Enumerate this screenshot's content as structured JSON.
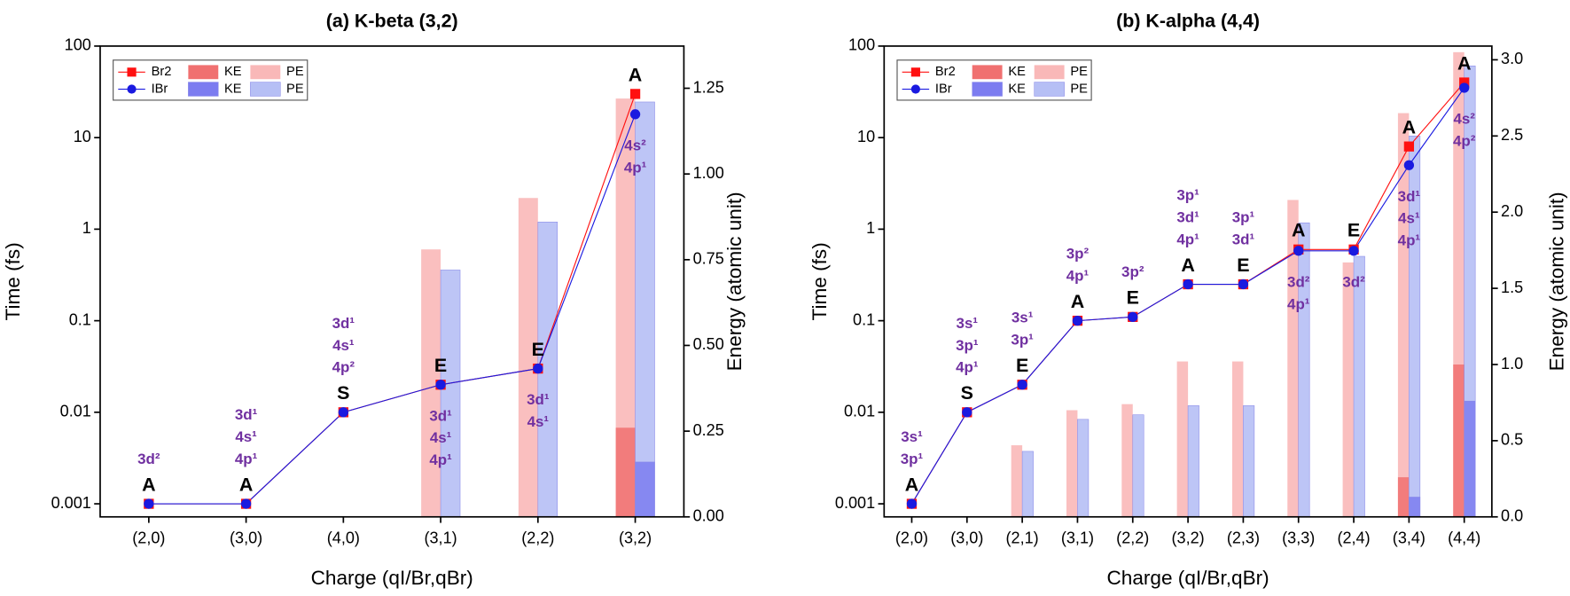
{
  "chart_data": [
    {
      "type": "bar_line",
      "title": "(a) K-beta (3,2)",
      "x_label": "Charge (qI/Br,qBr)",
      "y_label": "Time (fs)",
      "y2_label": "Energy (atomic unit)",
      "categories": [
        "(2,0)",
        "(3,0)",
        "(4,0)",
        "(3,1)",
        "(2,2)",
        "(3,2)"
      ],
      "series": [
        {
          "name": "Br2",
          "kind": "line",
          "marker": "square",
          "color": "#ff1010",
          "values": [
            0.001,
            0.001,
            0.01,
            0.02,
            0.03,
            30
          ]
        },
        {
          "name": "IBr",
          "kind": "line",
          "marker": "circle",
          "color": "#1a1ae0",
          "values": [
            0.001,
            0.001,
            0.01,
            0.02,
            0.03,
            18
          ]
        },
        {
          "name": "KE",
          "kind": "bar",
          "axis": "y2",
          "color": "#f07070",
          "values": [
            null,
            null,
            null,
            null,
            null,
            0.26
          ]
        },
        {
          "name": "PE",
          "kind": "bar",
          "axis": "y2",
          "color": "#f9b8b8",
          "values": [
            null,
            null,
            null,
            0.78,
            0.93,
            1.22
          ]
        },
        {
          "name": "KE",
          "kind": "bar",
          "axis": "y2",
          "color": "#7c7cf0",
          "values": [
            null,
            null,
            null,
            null,
            null,
            0.16
          ]
        },
        {
          "name": "PE",
          "kind": "bar",
          "axis": "y2",
          "color": "#b6bff5",
          "values": [
            null,
            null,
            null,
            0.72,
            0.86,
            1.21
          ]
        }
      ],
      "point_labels": [
        "A",
        "A",
        "S",
        "E",
        "E",
        "A"
      ],
      "config_labels": [
        [
          "3d²"
        ],
        [
          "3d¹",
          "4s¹",
          "4p¹"
        ],
        [
          "3d¹",
          "4s¹",
          "4p²"
        ],
        [
          "3d¹",
          "4s¹",
          "4p¹"
        ],
        [
          "3d¹",
          "4s¹"
        ],
        [
          "4s²",
          "4p¹"
        ]
      ],
      "ylog": true,
      "ylim": [
        0.00072,
        100
      ],
      "yticks": [
        0.001,
        0.01,
        0.1,
        1,
        10,
        100
      ],
      "y2lim": [
        0,
        1.373
      ],
      "y2ticks": [
        {
          "value": 0,
          "label": "0.00"
        },
        {
          "value": 0.25,
          "label": "0.25"
        },
        {
          "value": 0.5,
          "label": "0.50"
        },
        {
          "value": 0.75,
          "label": "0.75"
        },
        {
          "value": 1,
          "label": "1.00"
        },
        {
          "value": 1.25,
          "label": "1.25"
        }
      ],
      "legend": "upper left"
    },
    {
      "type": "bar_line",
      "title": "(b) K-alpha (4,4)",
      "x_label": "Charge (qI/Br,qBr)",
      "y_label": "Time (fs)",
      "y2_label": "Energy (atomic unit)",
      "categories": [
        "(2,0)",
        "(3,0)",
        "(2,1)",
        "(3,1)",
        "(2,2)",
        "(3,2)",
        "(2,3)",
        "(3,3)",
        "(2,4)",
        "(3,4)",
        "(4,4)"
      ],
      "series": [
        {
          "name": "Br2",
          "kind": "line",
          "marker": "square",
          "color": "#ff1010",
          "values": [
            0.001,
            0.01,
            0.02,
            0.1,
            0.11,
            0.25,
            0.25,
            0.6,
            0.6,
            8,
            40
          ]
        },
        {
          "name": "IBr",
          "kind": "line",
          "marker": "circle",
          "color": "#1a1ae0",
          "values": [
            0.001,
            0.01,
            0.02,
            0.1,
            0.11,
            0.25,
            0.25,
            0.58,
            0.58,
            5,
            35
          ]
        },
        {
          "name": "KE",
          "kind": "bar",
          "axis": "y2",
          "color": "#f07070",
          "values": [
            null,
            null,
            null,
            null,
            null,
            null,
            null,
            null,
            null,
            0.26,
            1.0
          ]
        },
        {
          "name": "PE",
          "kind": "bar",
          "axis": "y2",
          "color": "#f9b8b8",
          "values": [
            null,
            null,
            0.47,
            0.7,
            0.74,
            1.02,
            1.02,
            2.08,
            1.67,
            2.65,
            3.05
          ]
        },
        {
          "name": "KE",
          "kind": "bar",
          "axis": "y2",
          "color": "#7c7cf0",
          "values": [
            null,
            null,
            null,
            null,
            null,
            null,
            null,
            null,
            null,
            0.13,
            0.76
          ]
        },
        {
          "name": "PE",
          "kind": "bar",
          "axis": "y2",
          "color": "#b6bff5",
          "values": [
            null,
            null,
            0.43,
            0.64,
            0.67,
            0.73,
            0.73,
            1.93,
            1.71,
            2.5,
            2.96
          ]
        }
      ],
      "point_labels": [
        "A",
        "S",
        "E",
        "A",
        "E",
        "A",
        "E",
        "A",
        "E",
        "A",
        "A"
      ],
      "config_labels": [
        [
          "3s¹",
          "3p¹"
        ],
        [
          "3s¹",
          "3p¹",
          "4p¹"
        ],
        [
          "3s¹",
          "3p¹"
        ],
        [
          "3p²",
          "4p¹"
        ],
        [
          "3p²"
        ],
        [
          "3p¹",
          "3d¹",
          "4p¹"
        ],
        [
          "3p¹",
          "3d¹"
        ],
        [
          "3d²",
          "4p¹"
        ],
        [
          "3d²"
        ],
        [
          "3d¹",
          "4s¹",
          "4p¹"
        ],
        [
          "4s²",
          "4p²"
        ]
      ],
      "ylog": true,
      "ylim": [
        0.00072,
        100
      ],
      "yticks": [
        0.001,
        0.01,
        0.1,
        1,
        10,
        100
      ],
      "y2lim": [
        0,
        3.09
      ],
      "y2ticks": [
        {
          "value": 0,
          "label": "0.0"
        },
        {
          "value": 0.5,
          "label": "0.5"
        },
        {
          "value": 1,
          "label": "1.0"
        },
        {
          "value": 1.5,
          "label": "1.5"
        },
        {
          "value": 2,
          "label": "2.0"
        },
        {
          "value": 2.5,
          "label": "2.5"
        },
        {
          "value": 3,
          "label": "3.0"
        }
      ],
      "legend": "upper left"
    }
  ]
}
